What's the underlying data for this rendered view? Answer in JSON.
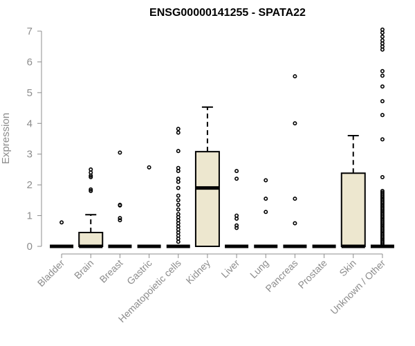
{
  "chart_data": {
    "type": "boxplot",
    "title": "ENSG00000141255 - SPATA22",
    "xlabel": "",
    "ylabel": "Expression",
    "ylim": [
      0,
      7
    ],
    "yticks": [
      0,
      1,
      2,
      3,
      4,
      5,
      6,
      7
    ],
    "box_fill": "#ede7cf",
    "categories": [
      "Bladder",
      "Brain",
      "Breast",
      "Gastric",
      "Hematopoietic cells",
      "Kidney",
      "Liver",
      "Lung",
      "Pancreas",
      "Prostate",
      "Skin",
      "Unknown / Other"
    ],
    "boxes": [
      {
        "category": "Bladder",
        "min": 0,
        "q1": 0,
        "median": 0,
        "q3": 0,
        "max": 0,
        "outliers": [
          0.78
        ]
      },
      {
        "category": "Brain",
        "min": 0,
        "q1": 0,
        "median": 0,
        "q3": 0.45,
        "max": 1.03,
        "outliers": [
          1.8,
          1.85,
          2.25,
          2.3,
          2.4,
          2.5
        ]
      },
      {
        "category": "Breast",
        "min": 0,
        "q1": 0,
        "median": 0,
        "q3": 0,
        "max": 0,
        "outliers": [
          0.85,
          0.92,
          1.33,
          1.35,
          3.05
        ]
      },
      {
        "category": "Gastric",
        "min": 0,
        "q1": 0,
        "median": 0,
        "q3": 0,
        "max": 0,
        "outliers": [
          2.57
        ]
      },
      {
        "category": "Hematopoietic cells",
        "min": 0,
        "q1": 0,
        "median": 0,
        "q3": 0,
        "max": 0,
        "outliers": [
          0.15,
          0.25,
          0.35,
          0.45,
          0.55,
          0.65,
          0.75,
          0.85,
          0.95,
          1.05,
          1.2,
          1.35,
          1.5,
          1.65,
          1.9,
          2.1,
          2.2,
          2.45,
          2.55,
          3.1,
          3.7,
          3.82
        ]
      },
      {
        "category": "Kidney",
        "min": 0,
        "q1": 0,
        "median": 1.9,
        "q3": 3.08,
        "max": 4.53,
        "outliers": []
      },
      {
        "category": "Liver",
        "min": 0,
        "q1": 0,
        "median": 0,
        "q3": 0,
        "max": 0,
        "outliers": [
          0.6,
          0.68,
          0.9,
          1.0,
          2.2,
          2.45
        ]
      },
      {
        "category": "Lung",
        "min": 0,
        "q1": 0,
        "median": 0,
        "q3": 0,
        "max": 0,
        "outliers": [
          1.12,
          1.55,
          2.15
        ]
      },
      {
        "category": "Pancreas",
        "min": 0,
        "q1": 0,
        "median": 0,
        "q3": 0,
        "max": 0,
        "outliers": [
          0.75,
          1.55,
          4.0,
          5.53
        ]
      },
      {
        "category": "Prostate",
        "min": 0,
        "q1": 0,
        "median": 0,
        "q3": 0,
        "max": 0,
        "outliers": []
      },
      {
        "category": "Skin",
        "min": 0,
        "q1": 0,
        "median": 0,
        "q3": 2.38,
        "max": 3.6,
        "outliers": []
      },
      {
        "category": "Unknown / Other",
        "min": 0,
        "q1": 0,
        "median": 0,
        "q3": 0,
        "max": 0,
        "outliers": [
          0.05,
          0.1,
          0.15,
          0.2,
          0.25,
          0.3,
          0.35,
          0.4,
          0.45,
          0.5,
          0.55,
          0.6,
          0.65,
          0.7,
          0.75,
          0.8,
          0.85,
          0.9,
          0.95,
          1.0,
          1.05,
          1.1,
          1.15,
          1.2,
          1.25,
          1.3,
          1.35,
          1.4,
          1.45,
          1.5,
          1.55,
          1.6,
          1.65,
          1.7,
          1.75,
          1.8,
          2.25,
          3.48,
          4.27,
          4.72,
          5.2,
          5.55,
          5.7,
          6.4,
          6.5,
          6.6,
          6.7,
          6.82,
          6.95,
          7.05
        ]
      }
    ]
  }
}
